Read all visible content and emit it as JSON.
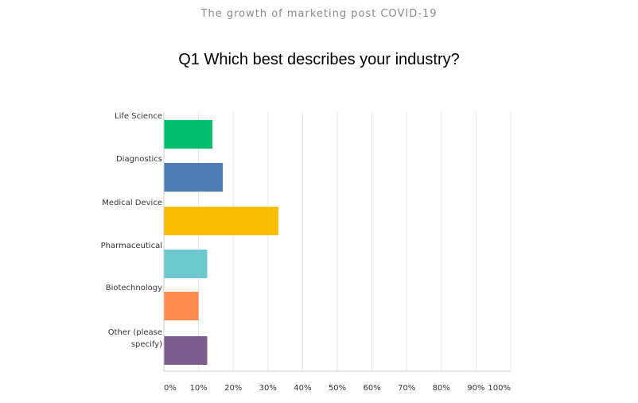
{
  "header": {
    "survey_title": "The growth of marketing post COVID-19",
    "question": "Q1 Which best describes your industry?"
  },
  "chart_data": {
    "type": "bar",
    "orientation": "horizontal",
    "title": "Q1 Which best describes your industry?",
    "categories": [
      [
        "Life Science"
      ],
      [
        "Diagnostics"
      ],
      [
        "Medical Device"
      ],
      [
        "Pharmaceutical"
      ],
      [
        "Biotechnology"
      ],
      [
        "Other (please",
        "specify)"
      ]
    ],
    "values": [
      14,
      17,
      33,
      12.5,
      10,
      12.5
    ],
    "colors": [
      "#00bf6f",
      "#507cb6",
      "#f9be00",
      "#6bc8cd",
      "#ff8b4f",
      "#7d5e90"
    ],
    "xlim": [
      0,
      100
    ],
    "ticks": [
      "0%",
      "10%",
      "20%",
      "30%",
      "40%",
      "50%",
      "60%",
      "70%",
      "80%",
      "90%",
      "100%"
    ],
    "grid": true,
    "legend": "none"
  }
}
